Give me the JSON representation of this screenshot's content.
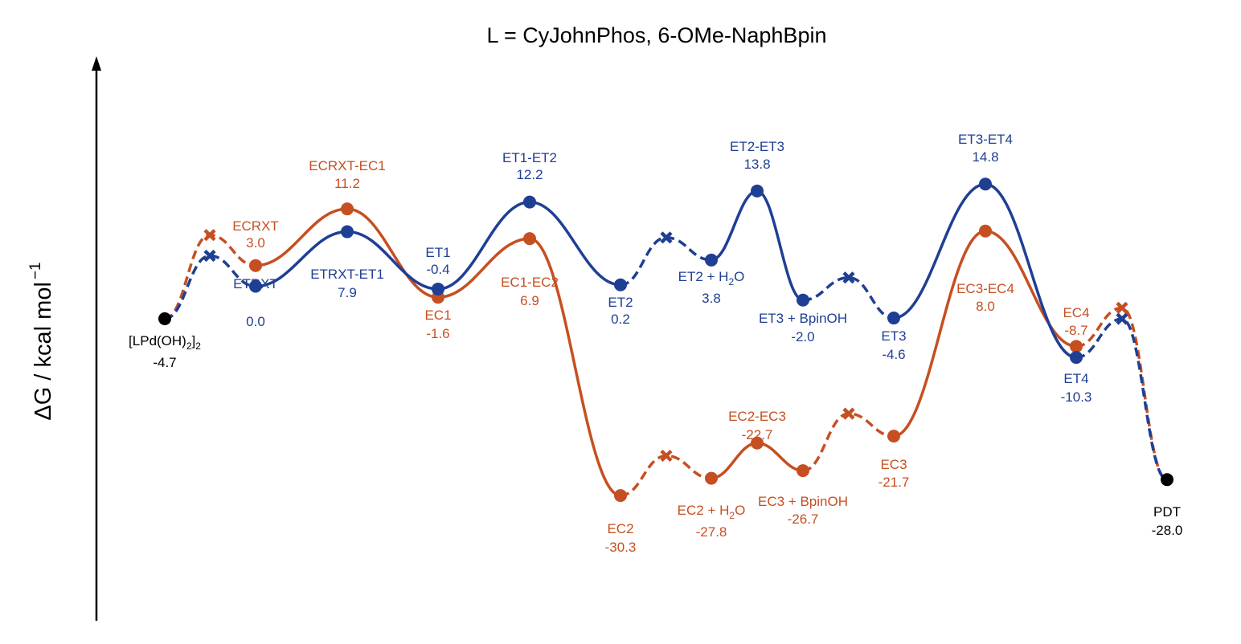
{
  "chart_data": {
    "type": "line",
    "title": "L = CyJohnPhos, 6-OMe-NaphBpin",
    "ylabel": "ΔG / kcal mol",
    "ylabel_sup": "−1",
    "colors": {
      "ET": "#1f3f94",
      "EC": "#c64f21",
      "common": "#000000"
    },
    "start": {
      "name": "[LPd(OH)2]2",
      "label_main": "[LPd(OH)",
      "label_sub1": "2",
      "label_mid": "]",
      "label_sub2": "2",
      "value": "-4.7",
      "g": -4.7
    },
    "end": {
      "name": "PDT",
      "label": "PDT",
      "value": "-28.0",
      "g": -28.0
    },
    "series": [
      {
        "name": "ET",
        "color": "#1f3f94",
        "points": [
          {
            "name": "ETRXT",
            "label": "ETRXT",
            "value": "0.0",
            "g": 0.0
          },
          {
            "name": "ETRXT-ET1",
            "label": "ETRXT-ET1",
            "value": "7.9",
            "g": 7.9
          },
          {
            "name": "ET1",
            "label": "ET1",
            "value": "-0.4",
            "g": -0.4
          },
          {
            "name": "ET1-ET2",
            "label": "ET1-ET2",
            "value": "12.2",
            "g": 12.2
          },
          {
            "name": "ET2",
            "label": "ET2",
            "value": "0.2",
            "g": 0.2
          },
          {
            "name": "ET2 + H2O",
            "label": "ET2 + H",
            "label_sub": "2",
            "label_tail": "O",
            "value": "3.8",
            "g": 3.8
          },
          {
            "name": "ET2-ET3",
            "label": "ET2-ET3",
            "value": "13.8",
            "g": 13.8
          },
          {
            "name": "ET3 + BpinOH",
            "label": "ET3 + BpinOH",
            "value": "-2.0",
            "g": -2.0
          },
          {
            "name": "ET3",
            "label": "ET3",
            "value": "-4.6",
            "g": -4.6
          },
          {
            "name": "ET3-ET4",
            "label": "ET3-ET4",
            "value": "14.8",
            "g": 14.8
          },
          {
            "name": "ET4",
            "label": "ET4",
            "value": "-10.3",
            "g": -10.3
          }
        ]
      },
      {
        "name": "EC",
        "color": "#c64f21",
        "points": [
          {
            "name": "ECRXT",
            "label": "ECRXT",
            "value": "3.0",
            "g": 3.0
          },
          {
            "name": "ECRXT-EC1",
            "label": "ECRXT-EC1",
            "value": "11.2",
            "g": 11.2
          },
          {
            "name": "EC1",
            "label": "EC1",
            "value": "-1.6",
            "g": -1.6
          },
          {
            "name": "EC1-EC2",
            "label": "EC1-EC2",
            "value": "6.9",
            "g": 6.9
          },
          {
            "name": "EC2",
            "label": "EC2",
            "value": "-30.3",
            "g": -30.3
          },
          {
            "name": "EC2 + H2O",
            "label": "EC2 + H",
            "label_sub": "2",
            "label_tail": "O",
            "value": "-27.8",
            "g": -27.8
          },
          {
            "name": "EC2-EC3",
            "label": "EC2-EC3",
            "value": "-22.7",
            "g": -22.7
          },
          {
            "name": "EC3 + BpinOH",
            "label": "EC3 + BpinOH",
            "value": "-26.7",
            "g": -26.7
          },
          {
            "name": "EC3",
            "label": "EC3",
            "value": "-21.7",
            "g": -21.7
          },
          {
            "name": "EC3-EC4",
            "label": "EC3-EC4",
            "value": "8.0",
            "g": 8.0
          },
          {
            "name": "EC4",
            "label": "EC4",
            "value": "-8.7",
            "g": -8.7
          }
        ]
      }
    ]
  }
}
